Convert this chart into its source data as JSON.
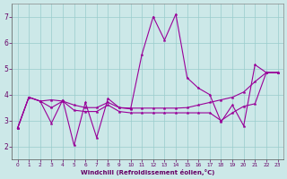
{
  "bg_color": "#cce8e8",
  "grid_color": "#99cccc",
  "line_color": "#990099",
  "xlim": [
    -0.5,
    23.5
  ],
  "ylim": [
    1.5,
    7.5
  ],
  "xticks": [
    0,
    1,
    2,
    3,
    4,
    5,
    6,
    7,
    8,
    9,
    10,
    11,
    12,
    13,
    14,
    15,
    16,
    17,
    18,
    19,
    20,
    21,
    22,
    23
  ],
  "yticks": [
    2,
    3,
    4,
    5,
    6,
    7
  ],
  "xlabel": "Windchill (Refroidissement éolien,°C)",
  "line1_y": [
    2.7,
    3.9,
    3.75,
    2.9,
    3.8,
    2.05,
    3.7,
    2.35,
    3.85,
    3.5,
    3.45,
    5.55,
    7.0,
    6.1,
    7.1,
    4.65,
    4.25,
    4.0,
    2.95,
    3.6,
    2.8,
    5.15,
    4.85,
    4.85
  ],
  "line2_y": [
    2.7,
    3.9,
    3.75,
    3.8,
    3.75,
    3.6,
    3.5,
    3.5,
    3.7,
    3.5,
    3.48,
    3.48,
    3.48,
    3.48,
    3.48,
    3.5,
    3.6,
    3.7,
    3.8,
    3.9,
    4.1,
    4.5,
    4.85,
    4.85
  ],
  "line3_y": [
    2.7,
    3.9,
    3.75,
    3.5,
    3.75,
    3.4,
    3.35,
    3.35,
    3.6,
    3.35,
    3.3,
    3.3,
    3.3,
    3.3,
    3.3,
    3.3,
    3.3,
    3.3,
    3.0,
    3.3,
    3.55,
    3.65,
    4.85,
    4.85
  ]
}
